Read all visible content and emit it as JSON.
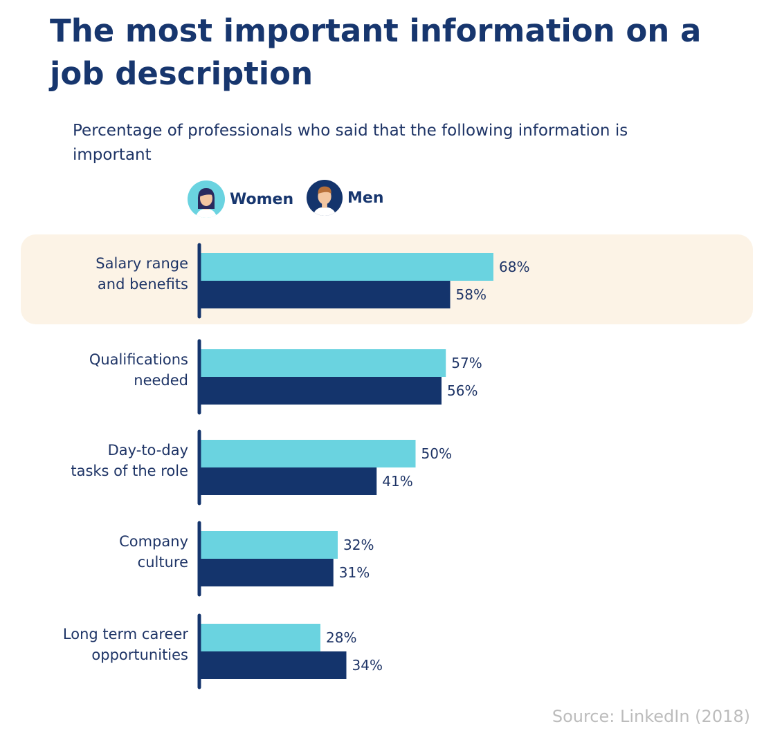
{
  "title": "The most important information on a job description",
  "subtitle": "Percentage of professionals who said that the following information is important",
  "source": "Source: LinkedIn (2018)",
  "colors": {
    "women": "#6ad3e0",
    "men": "#14346c",
    "highlight": "#fcf3e6",
    "axis": "#14346c"
  },
  "legend": [
    {
      "label": "Women",
      "icon": "woman-avatar-icon"
    },
    {
      "label": "Men",
      "icon": "man-avatar-icon"
    }
  ],
  "chart_data": {
    "type": "bar",
    "orientation": "horizontal",
    "categories": [
      [
        "Salary range",
        "and benefits"
      ],
      [
        "Qualifications",
        "needed"
      ],
      [
        "Day-to-day",
        "tasks of the role"
      ],
      [
        "Company",
        "culture"
      ],
      [
        "Long term career",
        "opportunities"
      ]
    ],
    "series": [
      {
        "name": "Women",
        "values": [
          68,
          57,
          50,
          32,
          28
        ],
        "labels": [
          "68%",
          "57%",
          "50%",
          "32%",
          "28%"
        ]
      },
      {
        "name": "Men",
        "values": [
          58,
          56,
          41,
          31,
          34
        ],
        "labels": [
          "58%",
          "56%",
          "41%",
          "31%",
          "34%"
        ]
      }
    ],
    "highlighted_category": 0,
    "xlim": [
      0,
      100
    ]
  }
}
